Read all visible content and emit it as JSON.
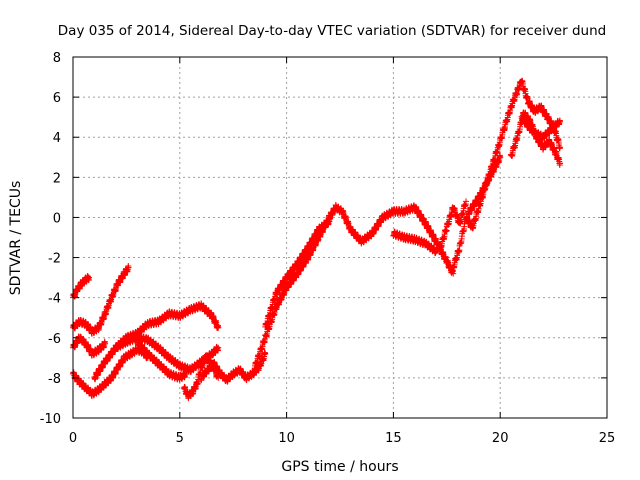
{
  "chart_data": {
    "type": "scatter",
    "title": "Day 035 of 2014, Sidereal Day-to-day VTEC variation (SDTVAR) for receiver dund",
    "xlabel": "GPS time / hours",
    "ylabel": "SDTVAR / TECUs",
    "xlim": [
      0,
      25
    ],
    "ylim": [
      -10,
      8
    ],
    "x_ticks": [
      0,
      5,
      10,
      15,
      20,
      25
    ],
    "y_ticks": [
      -10,
      -8,
      -6,
      -4,
      -2,
      0,
      2,
      4,
      6,
      8
    ],
    "grid": true,
    "marker": "+",
    "series_color": "#ff0000",
    "series": [
      {
        "x": [
          0.0,
          0.2,
          0.4,
          0.6,
          0.75
        ],
        "y": [
          -4.0,
          -3.6,
          -3.3,
          -3.1,
          -3.0
        ]
      },
      {
        "x": [
          0.0,
          0.3,
          0.6,
          0.9,
          1.2,
          1.5,
          1.8,
          2.1,
          2.4,
          2.6
        ],
        "y": [
          -5.5,
          -5.2,
          -5.3,
          -5.7,
          -5.5,
          -4.8,
          -4.0,
          -3.3,
          -2.8,
          -2.5
        ]
      },
      {
        "x": [
          0.0,
          0.3,
          0.6,
          0.9,
          1.2,
          1.5
        ],
        "y": [
          -6.5,
          -6.0,
          -6.3,
          -6.8,
          -6.6,
          -6.3
        ]
      },
      {
        "x": [
          0.0,
          0.3,
          0.6,
          0.9,
          1.2,
          1.5,
          1.8,
          2.1,
          2.4,
          2.7,
          3.0,
          3.3,
          3.5
        ],
        "y": [
          -7.8,
          -8.2,
          -8.5,
          -8.8,
          -8.6,
          -8.3,
          -8.0,
          -7.5,
          -7.0,
          -6.8,
          -6.6,
          -6.7,
          -7.0
        ]
      },
      {
        "x": [
          1.0,
          1.5,
          2.0,
          2.5,
          3.0,
          3.5,
          4.0,
          4.5,
          5.0,
          5.5,
          6.0,
          6.5,
          6.8
        ],
        "y": [
          -8.0,
          -7.2,
          -6.5,
          -6.0,
          -5.8,
          -5.3,
          -5.2,
          -4.8,
          -4.9,
          -4.6,
          -4.4,
          -4.9,
          -5.5
        ]
      },
      {
        "x": [
          2.0,
          2.5,
          3.0,
          3.5,
          4.0,
          4.5,
          5.0,
          5.5,
          6.0,
          6.5,
          6.8
        ],
        "y": [
          -6.5,
          -6.2,
          -6.0,
          -6.1,
          -6.5,
          -7.0,
          -7.4,
          -7.6,
          -7.2,
          -6.8,
          -6.5
        ]
      },
      {
        "x": [
          3.0,
          3.5,
          4.0,
          4.5,
          5.0,
          5.3
        ],
        "y": [
          -6.2,
          -6.8,
          -7.3,
          -7.8,
          -8.0,
          -7.8
        ]
      },
      {
        "x": [
          5.2,
          5.4,
          5.6,
          5.8,
          6.0,
          6.2,
          6.5,
          6.8
        ],
        "y": [
          -8.5,
          -8.9,
          -8.7,
          -8.3,
          -7.5,
          -7.0,
          -7.3,
          -8.0
        ]
      },
      {
        "x": [
          6.0,
          6.3,
          6.6,
          6.9,
          7.2,
          7.5,
          7.8,
          8.1,
          8.4,
          8.7,
          9.0
        ],
        "y": [
          -8.0,
          -7.6,
          -7.3,
          -7.8,
          -8.1,
          -7.8,
          -7.6,
          -8.0,
          -7.8,
          -7.5,
          -6.8
        ]
      },
      {
        "x": [
          8.5,
          9.0,
          9.5,
          10.0,
          10.5,
          11.0,
          11.5,
          12.0,
          12.3,
          12.6,
          13.0,
          13.5,
          14.0,
          14.5,
          15.0,
          15.5,
          16.0,
          16.5,
          17.0,
          17.5,
          17.8
        ],
        "y": [
          -7.5,
          -6.0,
          -4.5,
          -3.5,
          -2.8,
          -2.0,
          -1.0,
          0.0,
          0.5,
          0.3,
          -0.6,
          -1.2,
          -0.8,
          0.0,
          0.3,
          0.3,
          0.5,
          -0.3,
          -1.2,
          -2.2,
          -2.8
        ]
      },
      {
        "x": [
          9.0,
          9.5,
          10.0,
          10.5,
          11.0,
          11.5,
          12.0
        ],
        "y": [
          -5.5,
          -3.8,
          -3.0,
          -2.3,
          -1.5,
          -0.6,
          -0.2
        ]
      },
      {
        "x": [
          15.0,
          15.5,
          16.0,
          16.5,
          17.0
        ],
        "y": [
          -0.8,
          -1.0,
          -1.1,
          -1.3,
          -1.7
        ]
      },
      {
        "x": [
          17.8,
          18.1,
          18.4,
          18.7,
          19.0,
          19.3,
          19.6,
          19.9,
          20.2
        ],
        "y": [
          -2.5,
          -1.5,
          0.0,
          -0.5,
          0.5,
          1.5,
          2.5,
          3.5,
          4.5
        ]
      },
      {
        "x": [
          17.2,
          17.5,
          17.8,
          18.1,
          18.4
        ],
        "y": [
          -1.5,
          -0.5,
          0.5,
          -0.3,
          0.8
        ]
      },
      {
        "x": [
          18.5,
          19.0,
          19.5,
          20.0
        ],
        "y": [
          0.2,
          1.0,
          2.0,
          3.0
        ]
      },
      {
        "x": [
          20.2,
          20.5,
          20.8,
          21.0,
          21.3,
          21.6,
          21.9,
          22.2,
          22.5,
          22.8
        ],
        "y": [
          4.5,
          5.5,
          6.3,
          6.8,
          5.8,
          5.3,
          5.5,
          5.0,
          4.5,
          3.5
        ]
      },
      {
        "x": [
          20.5,
          20.8,
          21.1,
          21.4,
          21.7,
          22.0,
          22.3,
          22.6,
          22.8
        ],
        "y": [
          3.0,
          4.0,
          5.2,
          4.8,
          4.0,
          3.5,
          3.8,
          3.2,
          2.7
        ]
      },
      {
        "x": [
          21.0,
          21.5,
          22.0,
          22.5,
          22.8
        ],
        "y": [
          5.0,
          4.3,
          4.0,
          4.5,
          4.8
        ]
      }
    ]
  }
}
